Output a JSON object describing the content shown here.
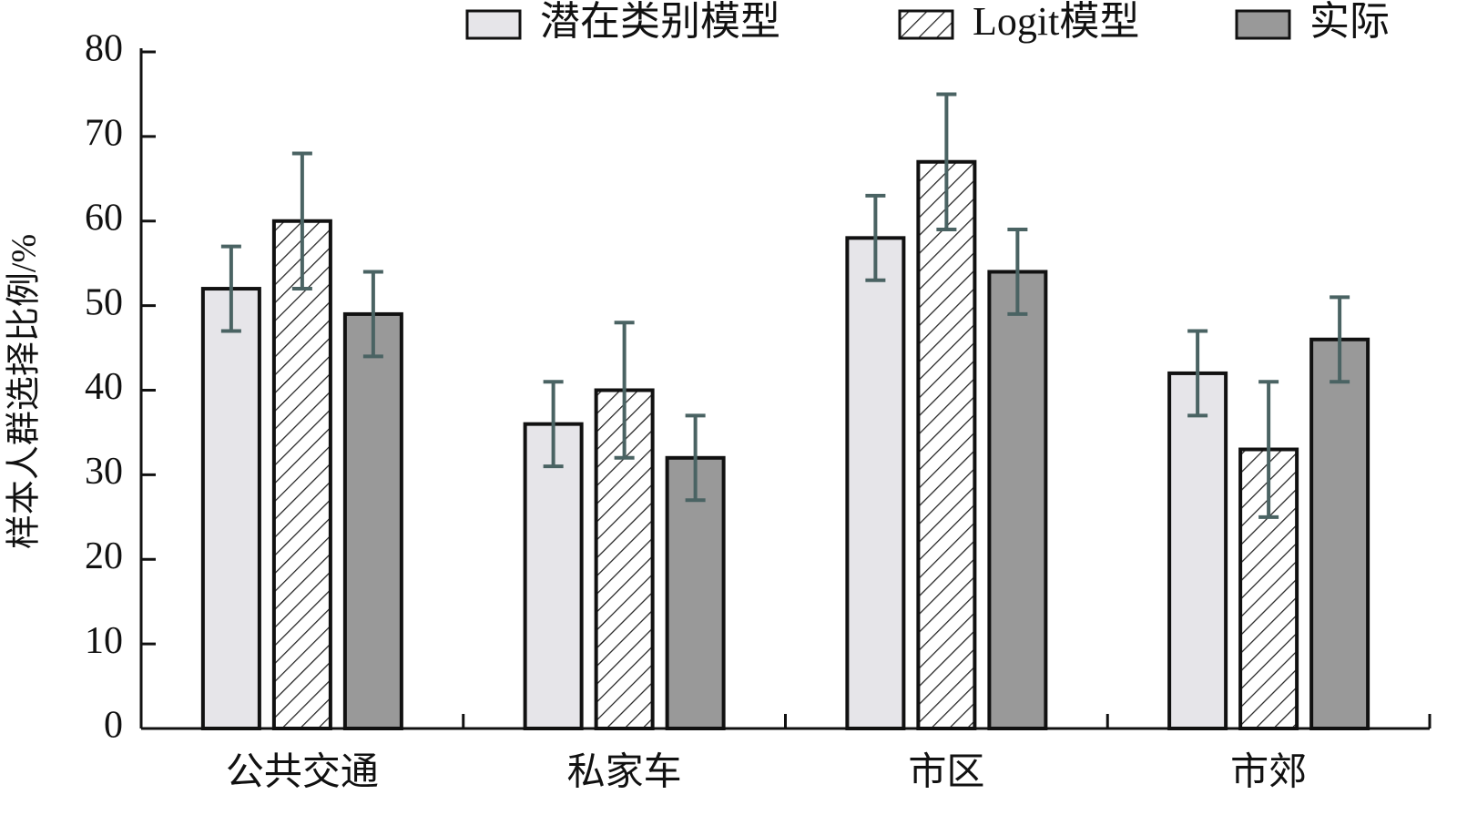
{
  "chart_data": {
    "type": "bar",
    "y_label": "样本人群选择比例/%",
    "categories": [
      "公共交通",
      "私家车",
      "市区",
      "市郊"
    ],
    "series": [
      {
        "name": "潜在类别模型",
        "color": "#e6e5e9",
        "values": [
          52,
          36,
          58,
          42
        ],
        "errors": [
          5,
          5,
          5,
          5
        ]
      },
      {
        "name": "Logit模型",
        "color": "#ffffff",
        "hatch": true,
        "values": [
          60,
          40,
          67,
          33
        ],
        "errors": [
          8,
          8,
          8,
          8
        ]
      },
      {
        "name": "实际",
        "color": "#999999",
        "values": [
          49,
          32,
          54,
          46
        ],
        "errors": [
          5,
          5,
          5,
          5
        ]
      }
    ],
    "error_color": "#4a6363",
    "ylim": [
      0,
      80
    ],
    "yticks": [
      0,
      10,
      20,
      30,
      40,
      50,
      60,
      70,
      80
    ],
    "legend": "top"
  }
}
